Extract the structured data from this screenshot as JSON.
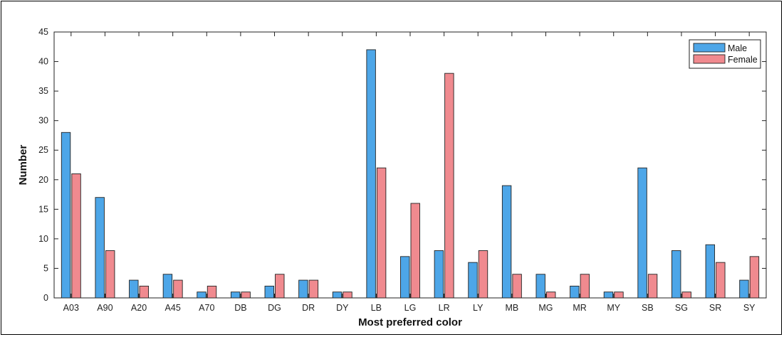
{
  "chart_data": {
    "type": "bar",
    "title": "",
    "xlabel": "Most preferred color",
    "ylabel": "Number",
    "ylim": [
      0,
      45
    ],
    "yticks": [
      0,
      5,
      10,
      15,
      20,
      25,
      30,
      35,
      40,
      45
    ],
    "categories": [
      "A03",
      "A90",
      "A20",
      "A45",
      "A70",
      "DB",
      "DG",
      "DR",
      "DY",
      "LB",
      "LG",
      "LR",
      "LY",
      "MB",
      "MG",
      "MR",
      "MY",
      "SB",
      "SG",
      "SR",
      "SY"
    ],
    "series": [
      {
        "name": "Male",
        "color": "#4DA6E8",
        "values": [
          28,
          17,
          3,
          4,
          1,
          1,
          2,
          3,
          1,
          42,
          7,
          8,
          6,
          19,
          4,
          2,
          1,
          22,
          8,
          9,
          3
        ]
      },
      {
        "name": "Female",
        "color": "#F08A8F",
        "values": [
          21,
          8,
          2,
          3,
          2,
          1,
          4,
          3,
          1,
          22,
          16,
          38,
          8,
          4,
          1,
          4,
          1,
          4,
          1,
          6,
          7
        ]
      }
    ],
    "legend_position": "top-right",
    "grid": false
  }
}
